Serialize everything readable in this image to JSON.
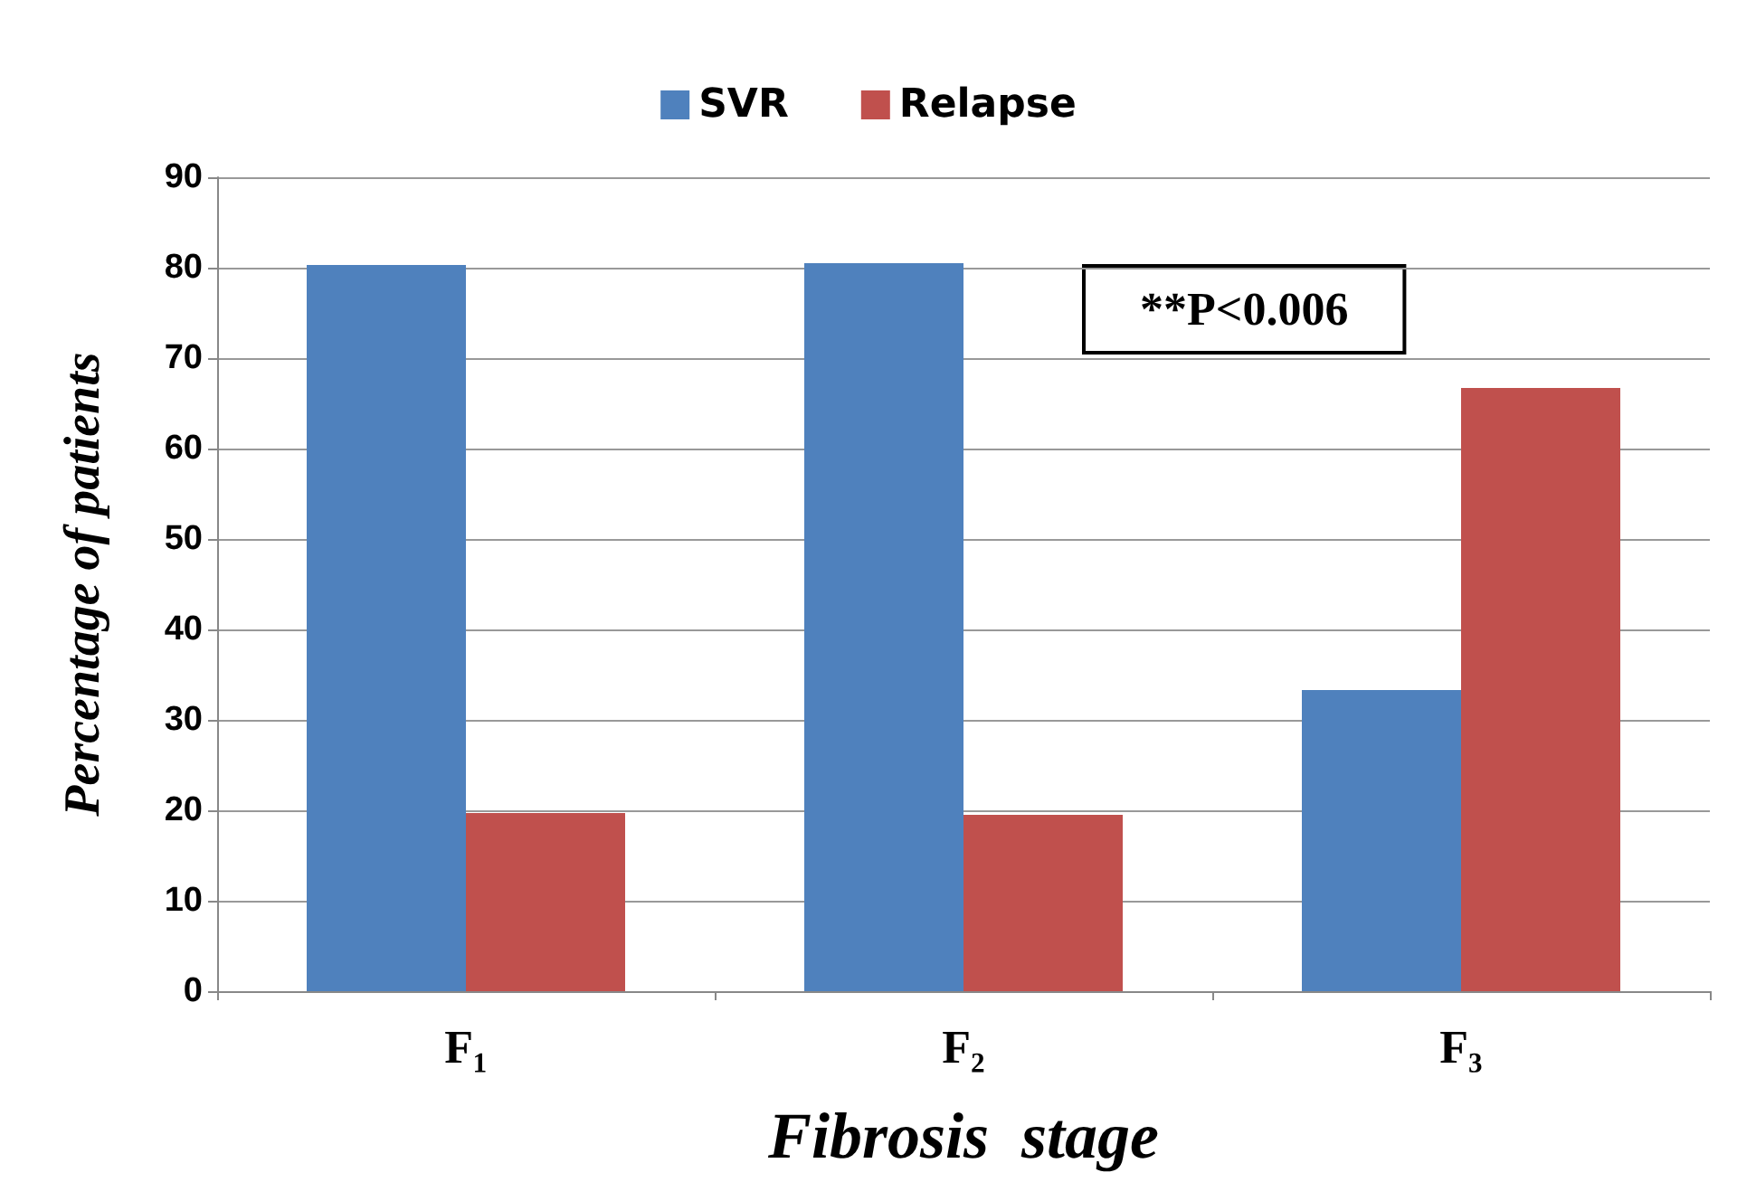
{
  "chart_data": {
    "type": "bar",
    "xlabel": "Fibrosis  stage",
    "ylabel": "Percentage of patients",
    "categories": [
      "F₁",
      "F₂",
      "F₃"
    ],
    "series": [
      {
        "name": "SVR",
        "color": "#4f81bd",
        "values": [
          80.3,
          80.5,
          33.3
        ]
      },
      {
        "name": "Relapse",
        "color": "#c0504d",
        "values": [
          19.7,
          19.5,
          66.7
        ]
      }
    ],
    "ylim": [
      0,
      90
    ],
    "yticks": [
      0,
      10,
      20,
      30,
      40,
      50,
      60,
      70,
      80,
      90
    ],
    "grid": "y",
    "legend": "top",
    "annotations": [
      "**P<0.006"
    ]
  }
}
